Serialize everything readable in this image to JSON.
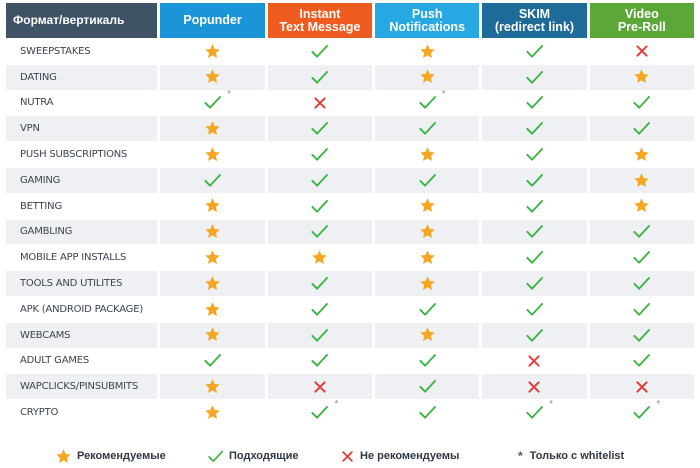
{
  "colors": {
    "header_first": "#3f5266",
    "header": [
      "#1a96d8",
      "#ef5b1f",
      "#27a8e3",
      "#1e6a98",
      "#5ba839"
    ],
    "star": "#f5a623",
    "check": "#3cb544",
    "cross": "#e53935"
  },
  "header": {
    "first": "Формат/вертикаль",
    "columns": [
      [
        "Popunder"
      ],
      [
        "Instant",
        "Text Message"
      ],
      [
        "Push",
        "Notifications"
      ],
      [
        "SKIM",
        "(redirect link)"
      ],
      [
        "Video",
        "Pre-Roll"
      ]
    ]
  },
  "rows": [
    {
      "name": "SWEEPSTAKES",
      "cells": [
        "star",
        "check",
        "star",
        "check",
        "cross"
      ]
    },
    {
      "name": "DATING",
      "cells": [
        "star",
        "check",
        "star",
        "check",
        "star"
      ]
    },
    {
      "name": "NUTRA",
      "cells": [
        "check*",
        "cross",
        "check*",
        "check",
        "check"
      ]
    },
    {
      "name": "VPN",
      "cells": [
        "star",
        "check",
        "check",
        "check",
        "check"
      ]
    },
    {
      "name": "PUSH SUBSCRIPTIONS",
      "cells": [
        "star",
        "check",
        "star",
        "check",
        "star"
      ]
    },
    {
      "name": "GAMING",
      "cells": [
        "check",
        "check",
        "check",
        "check",
        "star"
      ]
    },
    {
      "name": "BETTING",
      "cells": [
        "star",
        "check",
        "star",
        "check",
        "star"
      ]
    },
    {
      "name": "GAMBLING",
      "cells": [
        "star",
        "check",
        "star",
        "check",
        "check"
      ]
    },
    {
      "name": "MOBILE APP INSTALLS",
      "cells": [
        "star",
        "star",
        "star",
        "check",
        "check"
      ]
    },
    {
      "name": "TOOLS AND UTILITES",
      "cells": [
        "star",
        "check",
        "star",
        "check",
        "check"
      ]
    },
    {
      "name": "APK (ANDROID PACKAGE)",
      "cells": [
        "star",
        "check",
        "check",
        "check",
        "check"
      ]
    },
    {
      "name": "WEBCAMS",
      "cells": [
        "star",
        "check",
        "star",
        "check",
        "check"
      ]
    },
    {
      "name": "ADULT GAMES",
      "cells": [
        "check",
        "check",
        "check",
        "cross",
        "check"
      ]
    },
    {
      "name": "WAPCLICKS/PINSUBMITS",
      "cells": [
        "star",
        "cross",
        "check",
        "cross",
        "cross"
      ]
    },
    {
      "name": "CRYPTO",
      "cells": [
        "star",
        "check*",
        "check",
        "check*",
        "check*"
      ]
    }
  ],
  "legend": {
    "recommended": "Рекомендуемые",
    "suitable": "Подходящие",
    "not_recommended": "Не рекомендуемы",
    "whitelist_symbol": "*",
    "whitelist": "Только с whitelist"
  },
  "icons": {
    "star": "star-icon",
    "check": "check-icon",
    "cross": "cross-icon"
  }
}
